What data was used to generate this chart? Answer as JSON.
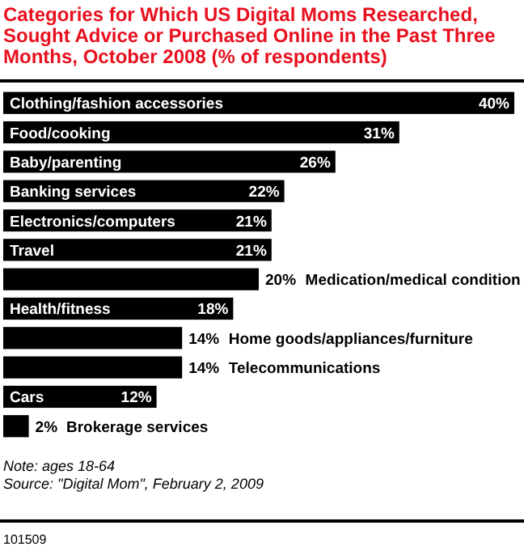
{
  "chart_data": {
    "type": "bar",
    "orientation": "horizontal",
    "title": "Categories for Which US Digital Moms Researched, Sought Advice or Purchased Online in the Past Three Months, October 2008 (% of respondents)",
    "categories": [
      "Clothing/fashion accessories",
      "Food/cooking",
      "Baby/parenting",
      "Banking services",
      "Electronics/computers",
      "Travel",
      "Medication/medical condition",
      "Health/fitness",
      "Home goods/appliances/furniture",
      "Telecommunications",
      "Cars",
      "Brokerage services"
    ],
    "values": [
      40,
      31,
      26,
      22,
      21,
      21,
      20,
      18,
      14,
      14,
      12,
      2
    ],
    "value_labels": [
      "40%",
      "31%",
      "26%",
      "22%",
      "21%",
      "21%",
      "20%",
      "18%",
      "14%",
      "14%",
      "12%",
      "2%"
    ],
    "color": "#000000",
    "annotations": [
      "Note: ages 18-64",
      "Source: \"Digital Mom\", February 2, 2009",
      "101509"
    ]
  }
}
